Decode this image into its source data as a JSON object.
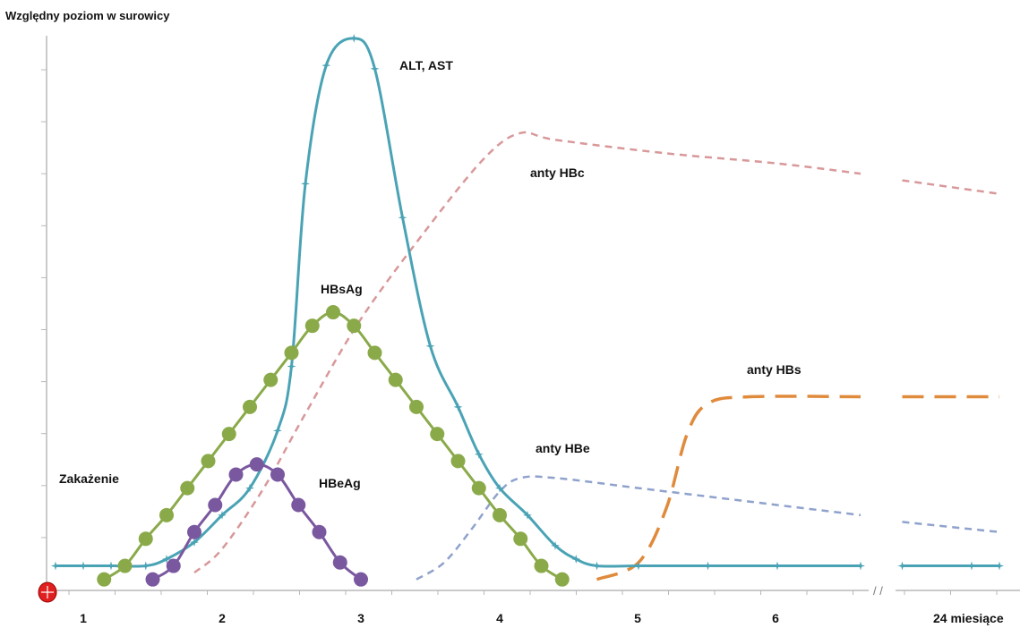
{
  "chart_data": {
    "type": "line",
    "ylabel": "Względny poziom w surowicy",
    "x_tick_labels": [
      "1",
      "2",
      "3",
      "4",
      "5",
      "6",
      "24  miesiące"
    ],
    "axis_break": "/ /",
    "start_marker_label": "Zakażenie",
    "yticks_count": 10,
    "series": [
      {
        "name": "ALT, AST",
        "color": "#4aa3b5",
        "style": "solid-star-markers",
        "points": [
          [
            0.8,
            0.07
          ],
          [
            1.0,
            0.07
          ],
          [
            1.2,
            0.07
          ],
          [
            1.45,
            0.07
          ],
          [
            1.6,
            0.09
          ],
          [
            1.8,
            0.14
          ],
          [
            2.0,
            0.22
          ],
          [
            2.2,
            0.3
          ],
          [
            2.4,
            0.47
          ],
          [
            2.5,
            0.66
          ],
          [
            2.6,
            1.2
          ],
          [
            2.75,
            1.55
          ],
          [
            2.95,
            1.63
          ],
          [
            3.1,
            1.54
          ],
          [
            3.3,
            1.1
          ],
          [
            3.5,
            0.72
          ],
          [
            3.7,
            0.54
          ],
          [
            3.85,
            0.4
          ],
          [
            4.0,
            0.3
          ],
          [
            4.2,
            0.22
          ],
          [
            4.4,
            0.13
          ],
          [
            4.55,
            0.09
          ],
          [
            4.7,
            0.07
          ],
          [
            5.0,
            0.07
          ],
          [
            5.5,
            0.07
          ],
          [
            6.0,
            0.07
          ],
          [
            6.6,
            0.07
          ]
        ],
        "points_after_break": [
          [
            6.9,
            0.07
          ],
          [
            7.4,
            0.07
          ],
          [
            7.6,
            0.07
          ]
        ]
      },
      {
        "name": "HBsAg",
        "color": "#8aaa4a",
        "style": "solid-circle-markers",
        "points": [
          [
            1.15,
            0.03
          ],
          [
            1.3,
            0.07
          ],
          [
            1.45,
            0.15
          ],
          [
            1.6,
            0.22
          ],
          [
            1.75,
            0.3
          ],
          [
            1.9,
            0.38
          ],
          [
            2.05,
            0.46
          ],
          [
            2.2,
            0.54
          ],
          [
            2.35,
            0.62
          ],
          [
            2.5,
            0.7
          ],
          [
            2.65,
            0.78
          ],
          [
            2.8,
            0.82
          ],
          [
            2.95,
            0.78
          ],
          [
            3.1,
            0.7
          ],
          [
            3.25,
            0.62
          ],
          [
            3.4,
            0.54
          ],
          [
            3.55,
            0.46
          ],
          [
            3.7,
            0.38
          ],
          [
            3.85,
            0.3
          ],
          [
            4.0,
            0.22
          ],
          [
            4.15,
            0.15
          ],
          [
            4.3,
            0.07
          ],
          [
            4.45,
            0.03
          ]
        ]
      },
      {
        "name": "HBeAg",
        "color": "#7a58a0",
        "style": "solid-circle-markers",
        "points": [
          [
            1.5,
            0.03
          ],
          [
            1.65,
            0.07
          ],
          [
            1.8,
            0.17
          ],
          [
            1.95,
            0.25
          ],
          [
            2.1,
            0.34
          ],
          [
            2.25,
            0.37
          ],
          [
            2.4,
            0.34
          ],
          [
            2.55,
            0.25
          ],
          [
            2.7,
            0.17
          ],
          [
            2.85,
            0.08
          ],
          [
            3.0,
            0.03
          ]
        ]
      },
      {
        "name": "anty HBc",
        "color": "#d8989a",
        "style": "dashed",
        "points": [
          [
            1.8,
            0.05
          ],
          [
            2.0,
            0.12
          ],
          [
            2.3,
            0.3
          ],
          [
            2.6,
            0.52
          ],
          [
            3.0,
            0.8
          ],
          [
            3.5,
            1.08
          ],
          [
            3.9,
            1.28
          ],
          [
            4.15,
            1.35
          ],
          [
            4.4,
            1.33
          ],
          [
            5.2,
            1.29
          ],
          [
            6.0,
            1.26
          ],
          [
            6.6,
            1.23
          ]
        ],
        "points_after_break": [
          [
            6.9,
            1.21
          ],
          [
            7.6,
            1.17
          ]
        ]
      },
      {
        "name": "anty HBe",
        "color": "#8fa2cc",
        "style": "dashed",
        "points": [
          [
            3.4,
            0.03
          ],
          [
            3.6,
            0.08
          ],
          [
            3.8,
            0.18
          ],
          [
            4.0,
            0.29
          ],
          [
            4.15,
            0.33
          ],
          [
            4.4,
            0.33
          ],
          [
            5.0,
            0.3
          ],
          [
            5.8,
            0.26
          ],
          [
            6.6,
            0.22
          ]
        ],
        "points_after_break": [
          [
            6.9,
            0.2
          ],
          [
            7.6,
            0.17
          ]
        ]
      },
      {
        "name": "anty HBs",
        "color": "#e08a3c",
        "style": "long-dash",
        "points": [
          [
            4.7,
            0.03
          ],
          [
            5.0,
            0.08
          ],
          [
            5.2,
            0.24
          ],
          [
            5.35,
            0.46
          ],
          [
            5.5,
            0.55
          ],
          [
            5.8,
            0.57
          ],
          [
            6.6,
            0.57
          ]
        ],
        "points_after_break": [
          [
            6.9,
            0.57
          ],
          [
            7.6,
            0.57
          ]
        ]
      }
    ]
  }
}
